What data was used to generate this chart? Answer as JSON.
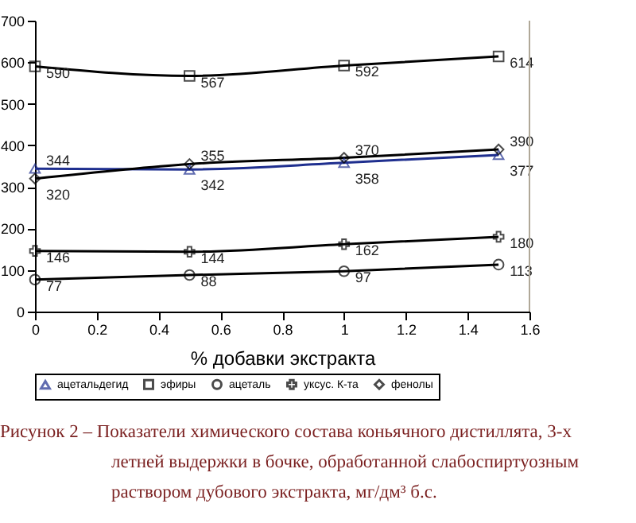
{
  "chart_data": {
    "type": "line",
    "xlabel": "% добавки экстракта",
    "x": [
      0,
      0.5,
      1,
      1.5
    ],
    "series": [
      {
        "name": "ацетальдегид",
        "color": "#1f2f8f",
        "marker": "triangle",
        "values": [
          344,
          342,
          358,
          377
        ]
      },
      {
        "name": "эфиры",
        "color": "#000000",
        "marker": "square",
        "values": [
          590,
          567,
          592,
          614
        ]
      },
      {
        "name": "ацеталь",
        "color": "#000000",
        "marker": "circle",
        "values": [
          77,
          88,
          97,
          113
        ]
      },
      {
        "name": "уксус. К-та",
        "color": "#000000",
        "marker": "cross",
        "values": [
          146,
          144,
          162,
          180
        ]
      },
      {
        "name": "фенолы",
        "color": "#000000",
        "marker": "diamond",
        "values": [
          320,
          355,
          370,
          390
        ]
      }
    ],
    "xlim": [
      0,
      1.6
    ],
    "xticks": [
      0,
      0.2,
      0.4,
      0.6,
      0.8,
      1,
      1.2,
      1.4,
      1.6
    ],
    "ylim": [
      0,
      700
    ],
    "yticks": [
      0,
      100,
      200,
      300,
      400,
      500,
      600,
      700
    ],
    "grid": false,
    "legend": "bottom",
    "data_labels": true,
    "annotations": [
      "Рисунок 2 – Показатели химического состава коньячного дистиллята, 3-х",
      "летней выдержки в бочке, обработанной слабоспиртуозным",
      "раствором дубового экстракта, мг/дм³ б.с."
    ]
  }
}
